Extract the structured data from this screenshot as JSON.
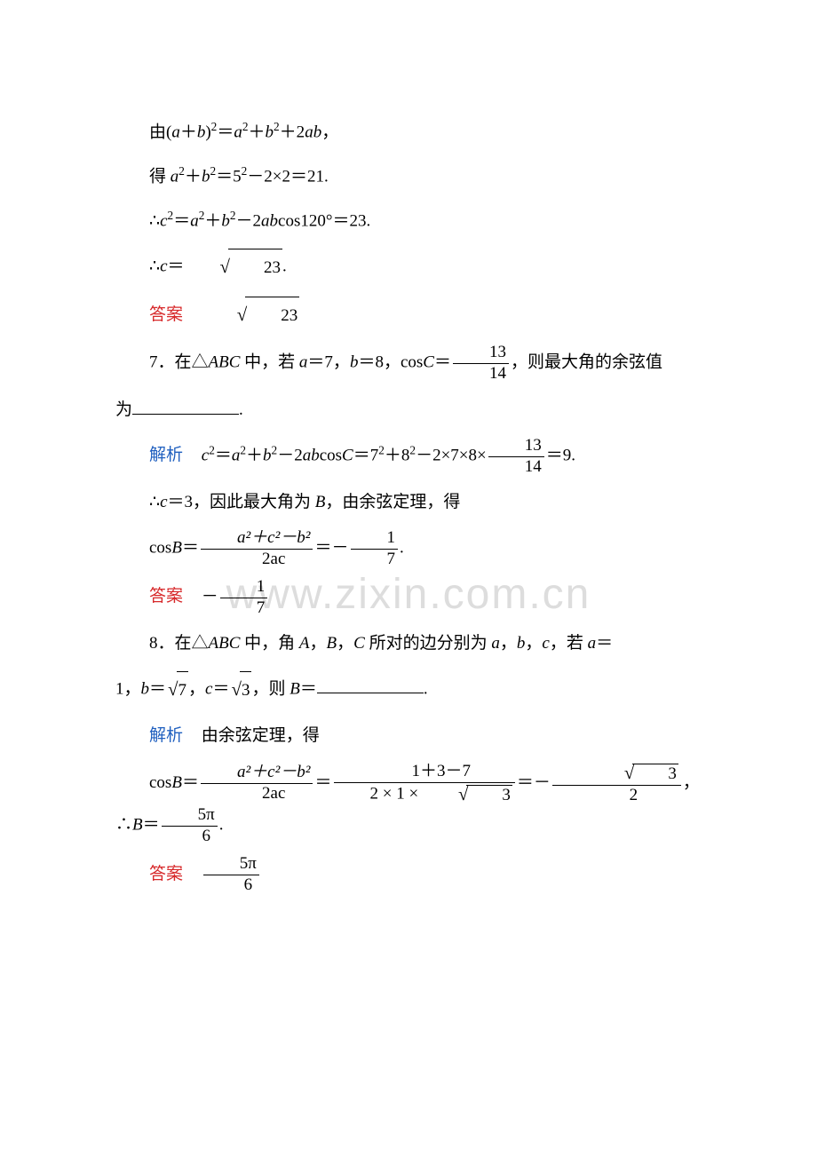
{
  "watermark": "www.zixin.com.cn",
  "colors": {
    "red": "#d7282a",
    "blue": "#1f5fbf",
    "text": "#000000",
    "bg": "#ffffff",
    "wm": "#dddddd"
  },
  "steps": {
    "l1_a": "由(",
    "l1_b": "a",
    "l1_c": "＋",
    "l1_d": "b",
    "l1_e": ")",
    "l1_f": "2",
    "l1_g": "＝",
    "l1_h": "a",
    "l1_i": "2",
    "l1_j": "＋",
    "l1_k": "b",
    "l1_l": "2",
    "l1_m": "＋2",
    "l1_n": "ab",
    "l1_o": "，",
    "l2_a": "得 ",
    "l2_b": "a",
    "l2_c": "2",
    "l2_d": "＋",
    "l2_e": "b",
    "l2_f": "2",
    "l2_g": "＝5",
    "l2_h": "2",
    "l2_i": "－2×2＝21.",
    "l3_a": "∴",
    "l3_b": "c",
    "l3_c": "2",
    "l3_d": "＝",
    "l3_e": "a",
    "l3_f": "2",
    "l3_g": "＋",
    "l3_h": "b",
    "l3_i": "2",
    "l3_j": "－2",
    "l3_k": "ab",
    "l3_l": "cos120°＝23.",
    "l4_a": "∴",
    "l4_b": "c",
    "l4_c": "＝",
    "l4_rad": "23",
    "l4_d": ".",
    "ans6_label": "答案",
    "ans6_rad": "23"
  },
  "q7": {
    "prefix": "7．在△",
    "abc": "ABC",
    "t1": " 中，若 ",
    "a": "a",
    "eq7": "＝7，",
    "b": "b",
    "eq8": "＝8，cos",
    "C": "C",
    "eqf": "＝",
    "frac_n": "13",
    "frac_d": "14",
    "t2": "，则最大角的余弦值",
    "t3": "为",
    "sol_label": "解析",
    "s1_a": "c",
    "s1_b": "2",
    "s1_c": "＝",
    "s1_d": "a",
    "s1_e": "2",
    "s1_f": "＋",
    "s1_g": "b",
    "s1_h": "2",
    "s1_i": "－2",
    "s1_j": "ab",
    "s1_k": "cos",
    "s1_l": "C",
    "s1_m": "＝7",
    "s1_n": "2",
    "s1_o": "＋8",
    "s1_p": "2",
    "s1_q": "－2×7×8×",
    "s1_fn": "13",
    "s1_fd": "14",
    "s1_r": "＝9.",
    "s2_a": "∴",
    "s2_b": "c",
    "s2_c": "＝3，因此最大角为 ",
    "s2_d": "B",
    "s2_e": "，由余弦定理，得",
    "s3_a": "cos",
    "s3_b": "B",
    "s3_c": "＝",
    "s3_fn": "a²＋c²－b²",
    "s3_fd": "2ac",
    "s3_d": "＝－",
    "s3_gn": "1",
    "s3_gd": "7",
    "s3_e": ".",
    "ans_label": "答案",
    "ans_neg": "－",
    "ans_fn": "1",
    "ans_fd": "7"
  },
  "q8": {
    "prefix": "8．在△",
    "abc": "ABC",
    "t1": " 中，角 ",
    "A": "A",
    "c1": "，",
    "B": "B",
    "c2": "，",
    "C": "C",
    "t2": " 所对的边分别为 ",
    "la": "a",
    "c3": "，",
    "lb": "b",
    "c4": "，",
    "lc": "c",
    "t3": "，若 ",
    "a2": "a",
    "eq1": "＝",
    "line2_a": "1，",
    "line2_b": "b",
    "line2_c": "＝",
    "rad7": "7",
    "line2_d": "，",
    "line2_e": "c",
    "line2_f": "＝",
    "rad3": "3",
    "line2_g": "，则 ",
    "line2_h": "B",
    "line2_i": "＝",
    "sol_label": "解析",
    "sol_text": "由余弦定理，得",
    "s1_a": "cos",
    "s1_b": "B",
    "s1_c": "＝",
    "s1_fn": "a²＋c²－b²",
    "s1_fd": "2ac",
    "s1_d": "＝",
    "s1_gn": "1＋3－7",
    "s1_gd_a": "2 × 1 × ",
    "s1_gd_rad": "3",
    "s1_e": "＝－",
    "s1_hn_rad": "3",
    "s1_hd": "2",
    "s1_f": "，∴",
    "s1_g": "B",
    "s1_h": "＝",
    "s1_in": "5π",
    "s1_id": "6",
    "s1_i": ".",
    "ans_label": "答案",
    "ans_fn": "5π",
    "ans_fd": "6"
  }
}
